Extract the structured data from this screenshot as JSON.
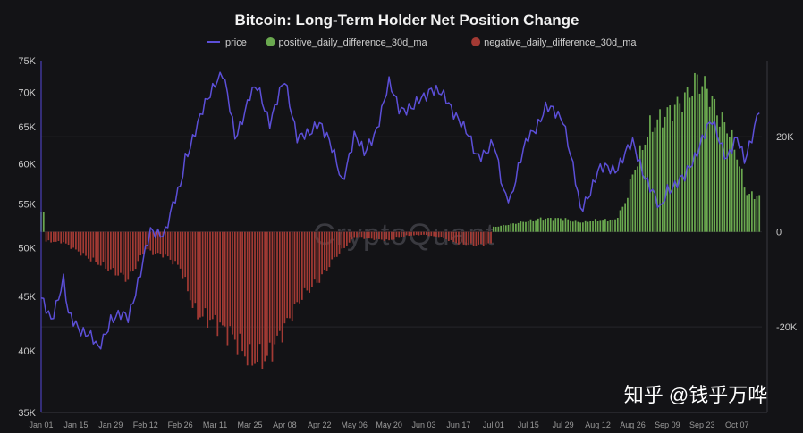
{
  "chart_data": {
    "type": "bar+line",
    "title": "Bitcoin: Long-Term Holder Net Position Change",
    "legend": [
      {
        "label": "price",
        "color": "#5c4fd8",
        "kind": "line"
      },
      {
        "label": "positive_daily_difference_30d_ma",
        "color": "#6aa84f",
        "kind": "dot"
      },
      {
        "label": "negative_daily_difference_30d_ma",
        "color": "#a33a34",
        "kind": "dot"
      }
    ],
    "watermark": "CryptoQuant",
    "x_ticks": [
      "Jan 01",
      "Jan 15",
      "Jan 29",
      "Feb 12",
      "Feb 26",
      "Mar 11",
      "Mar 25",
      "Apr 08",
      "Apr 22",
      "May 06",
      "May 20",
      "Jun 03",
      "Jun 17",
      "Jul 01",
      "Jul 15",
      "Jul 29",
      "Aug 12",
      "Aug 26",
      "Sep 09",
      "Sep 23",
      "Oct 07"
    ],
    "left_axis": {
      "scale": "log",
      "range": [
        35000,
        75000
      ],
      "ticks": [
        {
          "v": 75000,
          "label": "75K"
        },
        {
          "v": 70000,
          "label": "70K"
        },
        {
          "v": 65000,
          "label": "65K"
        },
        {
          "v": 60000,
          "label": "60K"
        },
        {
          "v": 55000,
          "label": "55K"
        },
        {
          "v": 50000,
          "label": "50K"
        },
        {
          "v": 45000,
          "label": "45K"
        },
        {
          "v": 40000,
          "label": "40K"
        },
        {
          "v": 35000,
          "label": "35K"
        }
      ]
    },
    "right_axis": {
      "range": [
        -38000,
        36000
      ],
      "ticks": [
        {
          "v": 20000,
          "label": "20K"
        },
        {
          "v": 0,
          "label": "0"
        },
        {
          "v": -20000,
          "label": "-20K"
        }
      ]
    },
    "price_keypoints": [
      [
        "Jan 01",
        44500
      ],
      [
        "Jan 05",
        43000
      ],
      [
        "Jan 10",
        46500
      ],
      [
        "Jan 12",
        43000
      ],
      [
        "Jan 20",
        41500
      ],
      [
        "Jan 24",
        40000
      ],
      [
        "Jan 29",
        43000
      ],
      [
        "Feb 05",
        43000
      ],
      [
        "Feb 10",
        47500
      ],
      [
        "Feb 14",
        51500
      ],
      [
        "Feb 20",
        52000
      ],
      [
        "Feb 26",
        57000
      ],
      [
        "Feb 28",
        61000
      ],
      [
        "Mar 05",
        66000
      ],
      [
        "Mar 11",
        72000
      ],
      [
        "Mar 14",
        73000
      ],
      [
        "Mar 19",
        63500
      ],
      [
        "Mar 25",
        69500
      ],
      [
        "Mar 28",
        70500
      ],
      [
        "Apr 02",
        66000
      ],
      [
        "Apr 08",
        71500
      ],
      [
        "Apr 13",
        64000
      ],
      [
        "Apr 18",
        63500
      ],
      [
        "Apr 22",
        66000
      ],
      [
        "Apr 25",
        64000
      ],
      [
        "May 01",
        57500
      ],
      [
        "May 06",
        64000
      ],
      [
        "May 10",
        61000
      ],
      [
        "May 15",
        65000
      ],
      [
        "May 20",
        71000
      ],
      [
        "May 24",
        68000
      ],
      [
        "May 30",
        67500
      ],
      [
        "Jun 06",
        71000
      ],
      [
        "Jun 10",
        69500
      ],
      [
        "Jun 17",
        66500
      ],
      [
        "Jun 24",
        61000
      ],
      [
        "Jul 01",
        62500
      ],
      [
        "Jul 05",
        56500
      ],
      [
        "Jul 08",
        56000
      ],
      [
        "Jul 15",
        63500
      ],
      [
        "Jul 22",
        67500
      ],
      [
        "Jul 29",
        66500
      ],
      [
        "Aug 05",
        54000
      ],
      [
        "Aug 12",
        59000
      ],
      [
        "Aug 19",
        59500
      ],
      [
        "Aug 26",
        62500
      ],
      [
        "Sep 06",
        54000
      ],
      [
        "Sep 09",
        57000
      ],
      [
        "Sep 16",
        58000
      ],
      [
        "Sep 23",
        63500
      ],
      [
        "Sep 27",
        65500
      ],
      [
        "Oct 03",
        61000
      ],
      [
        "Oct 07",
        63000
      ],
      [
        "Oct 10",
        60500
      ],
      [
        "Oct 16",
        67500
      ]
    ],
    "netposition_keypoints": [
      [
        "Jan 01",
        4000
      ],
      [
        "Jan 02",
        4000
      ],
      [
        "Jan 03",
        -2000
      ],
      [
        "Jan 10",
        -2200
      ],
      [
        "Jan 20",
        -5500
      ],
      [
        "Jan 29",
        -8000
      ],
      [
        "Feb 05",
        -10000
      ],
      [
        "Feb 12",
        -3500
      ],
      [
        "Feb 15",
        -4500
      ],
      [
        "Feb 20",
        -5000
      ],
      [
        "Feb 26",
        -7500
      ],
      [
        "Mar 03",
        -17000
      ],
      [
        "Mar 11",
        -19000
      ],
      [
        "Mar 18",
        -22000
      ],
      [
        "Mar 25",
        -27000
      ],
      [
        "Apr 01",
        -26500
      ],
      [
        "Apr 08",
        -20000
      ],
      [
        "Apr 15",
        -13500
      ],
      [
        "Apr 22",
        -10000
      ],
      [
        "Apr 28",
        -5500
      ],
      [
        "May 06",
        -1200
      ],
      [
        "May 13",
        -1500
      ],
      [
        "May 20",
        -1800
      ],
      [
        "May 27",
        -800
      ],
      [
        "Jun 03",
        -600
      ],
      [
        "Jun 10",
        -1200
      ],
      [
        "Jun 17",
        -2500
      ],
      [
        "Jun 24",
        -2800
      ],
      [
        "Jun 30",
        -2500
      ],
      [
        "Jul 01",
        1000
      ],
      [
        "Jul 10",
        1800
      ],
      [
        "Jul 20",
        2800
      ],
      [
        "Jul 29",
        2800
      ],
      [
        "Aug 05",
        2000
      ],
      [
        "Aug 12",
        2500
      ],
      [
        "Aug 19",
        2500
      ],
      [
        "Aug 23",
        6000
      ],
      [
        "Aug 26",
        12000
      ],
      [
        "Sep 02",
        22000
      ],
      [
        "Sep 09",
        25000
      ],
      [
        "Sep 16",
        28000
      ],
      [
        "Sep 21",
        32000
      ],
      [
        "Sep 25",
        30000
      ],
      [
        "Sep 30",
        24000
      ],
      [
        "Oct 04",
        21000
      ],
      [
        "Oct 07",
        16000
      ],
      [
        "Oct 11",
        8000
      ],
      [
        "Oct 16",
        7500
      ]
    ]
  },
  "ui": {
    "overlay_watermark": "知乎 @钱乎万哗"
  }
}
